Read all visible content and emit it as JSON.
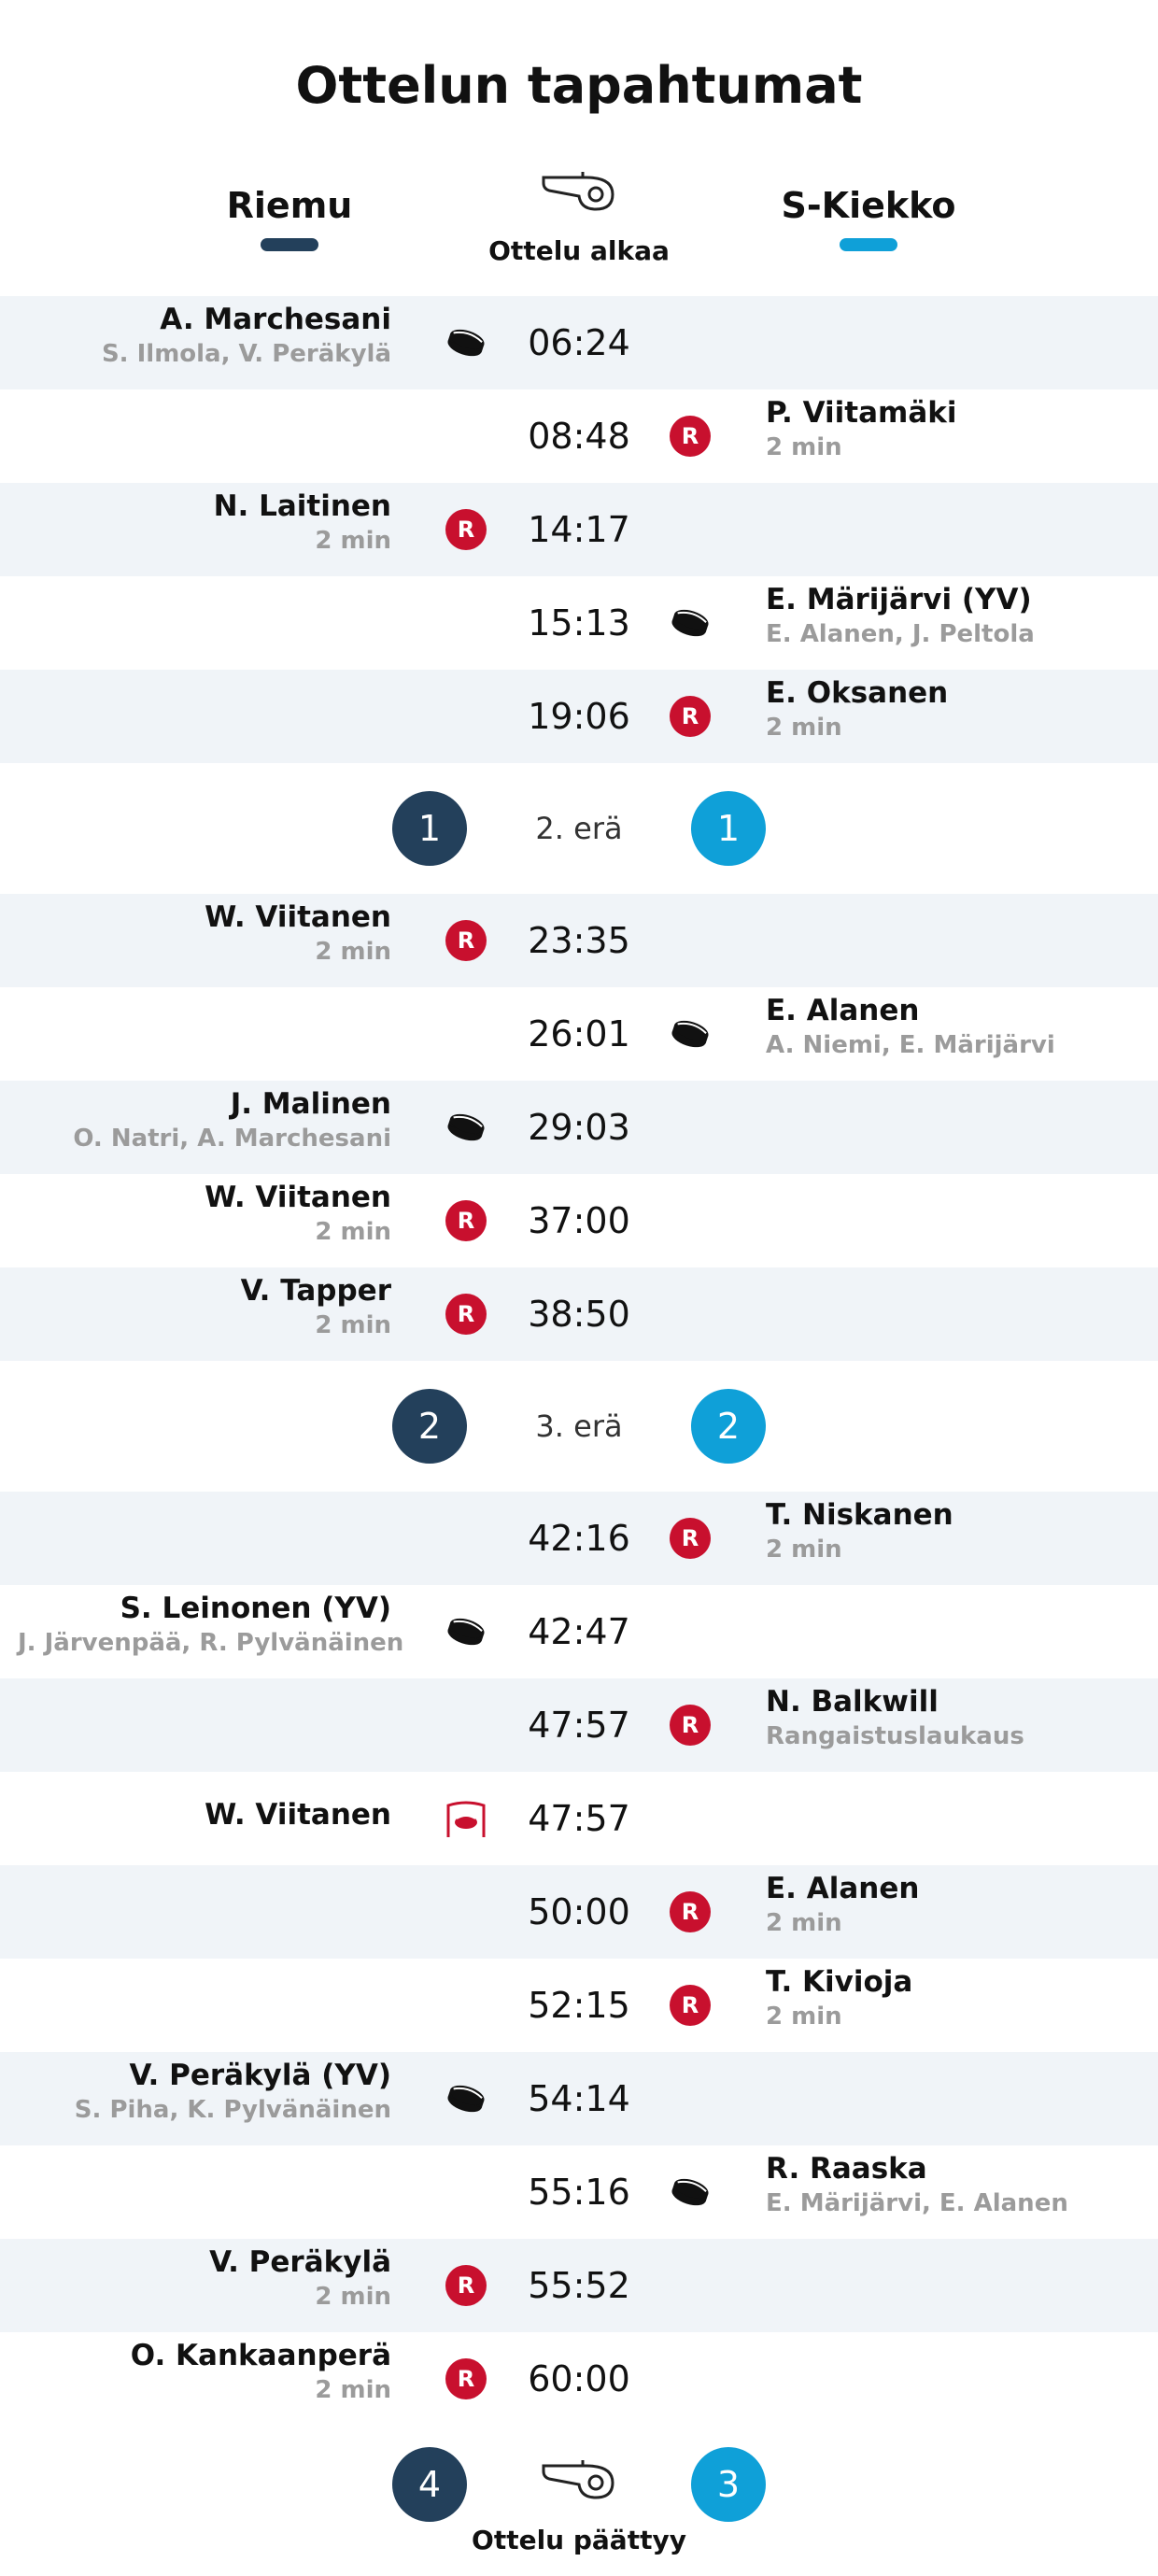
{
  "title": "Ottelun tapahtumat",
  "teams": {
    "home": "Riemu",
    "away": "S-Kiekko"
  },
  "colors": {
    "home": "#23405b",
    "away": "#0fa0d8",
    "penalty": "#c8102e",
    "shade": "#f0f4f8"
  },
  "start_label": "Ottelu alkaa",
  "end_label": "Ottelu päättyy",
  "penalty_letter": "R",
  "sections": [
    {
      "events": [
        {
          "time": "06:24",
          "side": "home",
          "type": "goal",
          "name": "A. Marchesani",
          "detail": "S. Ilmola, V. Peräkylä"
        },
        {
          "time": "08:48",
          "side": "away",
          "type": "penalty",
          "name": "P. Viitamäki",
          "detail": "2 min"
        },
        {
          "time": "14:17",
          "side": "home",
          "type": "penalty",
          "name": "N. Laitinen",
          "detail": "2 min"
        },
        {
          "time": "15:13",
          "side": "away",
          "type": "goal",
          "name": "E. Märijärvi (YV)",
          "detail": "E. Alanen, J. Peltola"
        },
        {
          "time": "19:06",
          "side": "away",
          "type": "penalty",
          "name": "E. Oksanen",
          "detail": "2 min"
        }
      ],
      "divider": {
        "label": "2. erä",
        "home": "1",
        "away": "1"
      }
    },
    {
      "events": [
        {
          "time": "23:35",
          "side": "home",
          "type": "penalty",
          "name": "W. Viitanen",
          "detail": "2 min"
        },
        {
          "time": "26:01",
          "side": "away",
          "type": "goal",
          "name": "E. Alanen",
          "detail": "A. Niemi, E. Märijärvi"
        },
        {
          "time": "29:03",
          "side": "home",
          "type": "goal",
          "name": "J. Malinen",
          "detail": "O. Natri, A. Marchesani"
        },
        {
          "time": "37:00",
          "side": "home",
          "type": "penalty",
          "name": "W. Viitanen",
          "detail": "2 min"
        },
        {
          "time": "38:50",
          "side": "home",
          "type": "penalty",
          "name": "V. Tapper",
          "detail": "2 min"
        }
      ],
      "divider": {
        "label": "3. erä",
        "home": "2",
        "away": "2"
      }
    },
    {
      "events": [
        {
          "time": "42:16",
          "side": "away",
          "type": "penalty",
          "name": "T. Niskanen",
          "detail": "2 min"
        },
        {
          "time": "42:47",
          "side": "home",
          "type": "goal",
          "name": "S. Leinonen (YV)",
          "detail": "J. Järvenpää, R. Pylvänäinen"
        },
        {
          "time": "47:57",
          "side": "away",
          "type": "penalty",
          "name": "N. Balkwill",
          "detail": "Rangaistuslaukaus"
        },
        {
          "time": "47:57",
          "side": "home",
          "type": "missed-shot",
          "name": "W. Viitanen",
          "detail": ""
        },
        {
          "time": "50:00",
          "side": "away",
          "type": "penalty",
          "name": "E. Alanen",
          "detail": "2 min"
        },
        {
          "time": "52:15",
          "side": "away",
          "type": "penalty",
          "name": "T. Kivioja",
          "detail": "2 min"
        },
        {
          "time": "54:14",
          "side": "home",
          "type": "goal",
          "name": "V. Peräkylä (YV)",
          "detail": "S. Piha, K. Pylvänäinen"
        },
        {
          "time": "55:16",
          "side": "away",
          "type": "goal",
          "name": "R. Raaska",
          "detail": "E. Märijärvi, E. Alanen"
        },
        {
          "time": "55:52",
          "side": "home",
          "type": "penalty",
          "name": "V. Peräkylä",
          "detail": "2 min"
        },
        {
          "time": "60:00",
          "side": "home",
          "type": "penalty",
          "name": "O. Kankaanperä",
          "detail": "2 min"
        }
      ]
    }
  ],
  "final_score": {
    "home": "4",
    "away": "3"
  }
}
